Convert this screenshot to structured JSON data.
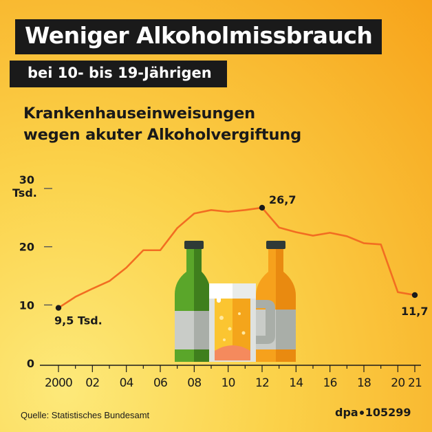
{
  "title": "Weniger Alkoholmissbrauch",
  "subtitle": "bei 10- bis 19-Jährigen",
  "heading_line1": "Krankenhauseinweisungen",
  "heading_line2": "wegen akuter Alkoholvergiftung",
  "source": "Quelle: Statistisches Bundesamt",
  "credit_brand": "dpa",
  "credit_number": "105299",
  "colors": {
    "line": "#f26d21",
    "text": "#1a1a1a",
    "title_bg": "#1a1a1a"
  },
  "icons": [
    "green-bottle-icon",
    "beer-mug-icon",
    "orange-bottle-icon"
  ],
  "chart_data": {
    "type": "line",
    "ylim": [
      0,
      30
    ],
    "y_ticks": [
      {
        "value": 0,
        "label": "0"
      },
      {
        "value": 10,
        "label": "10"
      },
      {
        "value": 20,
        "label": "20"
      },
      {
        "value": 30,
        "label": "30"
      }
    ],
    "y_unit": "Tsd.",
    "x_ticks": [
      {
        "value": 2000,
        "label": "2000"
      },
      {
        "value": 2002,
        "label": "02"
      },
      {
        "value": 2004,
        "label": "04"
      },
      {
        "value": 2006,
        "label": "06"
      },
      {
        "value": 2008,
        "label": "08"
      },
      {
        "value": 2010,
        "label": "10"
      },
      {
        "value": 2012,
        "label": "12"
      },
      {
        "value": 2014,
        "label": "14"
      },
      {
        "value": 2016,
        "label": "16"
      },
      {
        "value": 2018,
        "label": "18"
      },
      {
        "value": 2020,
        "label": "20"
      },
      {
        "value": 2021,
        "label": "21"
      }
    ],
    "x": [
      2000,
      2001,
      2002,
      2003,
      2004,
      2005,
      2006,
      2007,
      2008,
      2009,
      2010,
      2011,
      2012,
      2013,
      2014,
      2015,
      2016,
      2017,
      2018,
      2019,
      2020,
      2021
    ],
    "values": [
      9.5,
      11.4,
      12.8,
      14.1,
      16.4,
      19.4,
      19.4,
      23.2,
      25.7,
      26.3,
      26.0,
      26.3,
      26.7,
      23.3,
      22.5,
      21.9,
      22.4,
      21.8,
      20.6,
      20.4,
      12.2,
      11.7
    ],
    "annotations": [
      {
        "x": 2000,
        "value": 9.5,
        "label": "9,5 Tsd."
      },
      {
        "x": 2012,
        "value": 26.7,
        "label": "26,7"
      },
      {
        "x": 2021,
        "value": 11.7,
        "label": "11,7"
      }
    ]
  }
}
